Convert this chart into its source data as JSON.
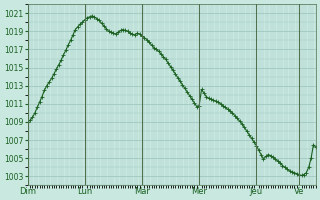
{
  "background_color": "#c8e8e0",
  "grid_color": "#a0c8c0",
  "line_color": "#1a6020",
  "marker_color": "#1a6020",
  "ylabel_color": "#1a6020",
  "ylim": [
    1002,
    1022
  ],
  "yticks": [
    1003,
    1005,
    1007,
    1009,
    1011,
    1013,
    1015,
    1017,
    1019,
    1021
  ],
  "day_labels": [
    "Dim",
    "Lun",
    "Mar",
    "Mer",
    "Jeu",
    "Ve"
  ],
  "day_positions": [
    0,
    24,
    48,
    72,
    96,
    114
  ],
  "pressure": [
    1009.0,
    1009.2,
    1009.5,
    1010.0,
    1010.6,
    1011.2,
    1011.8,
    1012.5,
    1013.0,
    1013.4,
    1013.8,
    1014.3,
    1014.8,
    1015.3,
    1015.8,
    1016.4,
    1016.9,
    1017.5,
    1018.0,
    1018.6,
    1019.2,
    1019.5,
    1019.8,
    1020.0,
    1020.3,
    1020.5,
    1020.6,
    1020.7,
    1020.6,
    1020.4,
    1020.2,
    1019.9,
    1019.6,
    1019.3,
    1019.0,
    1018.9,
    1018.8,
    1018.7,
    1018.9,
    1019.1,
    1019.2,
    1019.1,
    1019.0,
    1018.8,
    1018.7,
    1018.6,
    1018.8,
    1018.7,
    1018.5,
    1018.3,
    1018.1,
    1017.8,
    1017.5,
    1017.2,
    1017.0,
    1016.8,
    1016.5,
    1016.2,
    1015.9,
    1015.5,
    1015.1,
    1014.7,
    1014.3,
    1013.9,
    1013.5,
    1013.1,
    1012.7,
    1012.3,
    1011.9,
    1011.5,
    1011.1,
    1010.7,
    1010.8,
    1012.6,
    1012.2,
    1011.8,
    1011.6,
    1011.5,
    1011.4,
    1011.3,
    1011.2,
    1011.0,
    1010.8,
    1010.6,
    1010.4,
    1010.2,
    1010.0,
    1009.7,
    1009.4,
    1009.1,
    1008.8,
    1008.4,
    1008.0,
    1007.6,
    1007.2,
    1006.8,
    1006.4,
    1005.9,
    1005.4,
    1004.9,
    1005.2,
    1005.4,
    1005.3,
    1005.1,
    1004.9,
    1004.7,
    1004.5,
    1004.2,
    1004.0,
    1003.8,
    1003.6,
    1003.5,
    1003.4,
    1003.3,
    1003.2,
    1003.1,
    1003.2,
    1003.4,
    1004.0,
    1005.0,
    1006.5,
    1006.2
  ]
}
